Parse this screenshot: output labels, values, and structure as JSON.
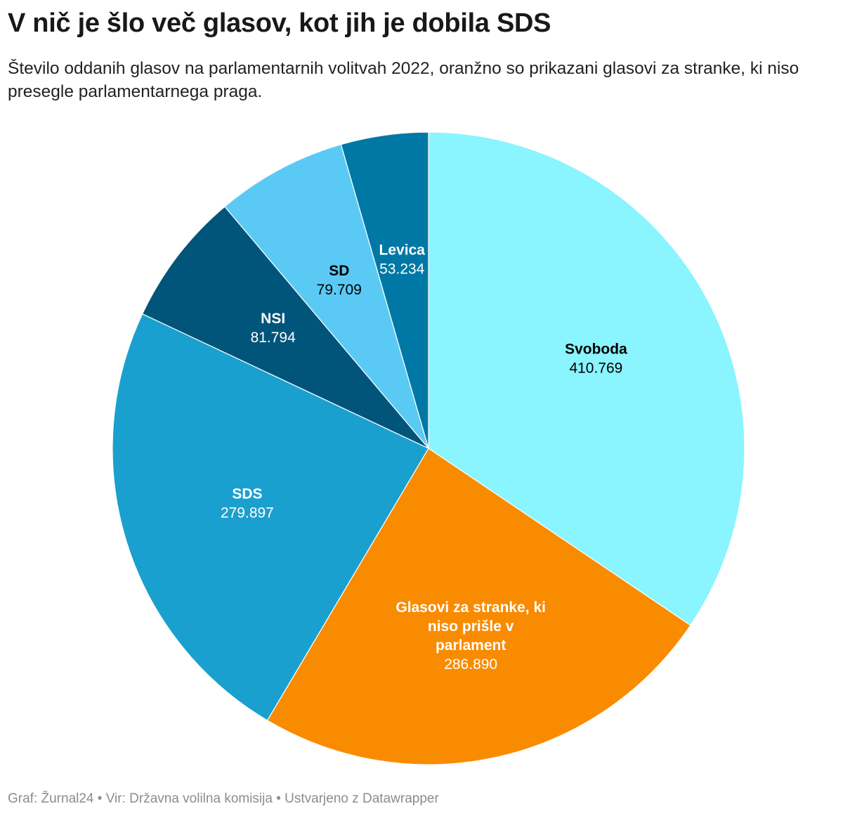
{
  "chart_data": {
    "type": "pie",
    "title": "V nič je šlo več glasov, kot jih je dobila SDS",
    "subtitle": "Število oddanih glasov na parlamentarnih volitvah 2022, oranžno so prikazani glasovi za stranke, ki niso presegle parlamentarnega praga.",
    "slices": [
      {
        "key": "svoboda",
        "label": "Svoboda",
        "value": 410769,
        "display": "410.769",
        "color": "#8af4ff",
        "text_color": "#000000"
      },
      {
        "key": "ostali",
        "label": "Glasovi za stranke, ki niso prišle v parlament",
        "label_lines": [
          "Glasovi za stranke, ki",
          "niso prišle v",
          "parlament"
        ],
        "value": 286890,
        "display": "286.890",
        "color": "#f98b00",
        "text_color": "#ffffff"
      },
      {
        "key": "sds",
        "label": "SDS",
        "value": 279897,
        "display": "279.897",
        "color": "#1aa0ce",
        "text_color": "#ffffff"
      },
      {
        "key": "nsi",
        "label": "NSI",
        "value": 81794,
        "display": "81.794",
        "color": "#02557a",
        "text_color": "#ffffff"
      },
      {
        "key": "sd",
        "label": "SD",
        "value": 79709,
        "display": "79.709",
        "color": "#5acaf5",
        "text_color": "#000000"
      },
      {
        "key": "levica",
        "label": "Levica",
        "value": 53234,
        "display": "53.234",
        "color": "#0078a5",
        "text_color": "#ffffff"
      }
    ]
  },
  "footer": "Graf: Žurnal24 • Vir: Državna volilna komisija • Ustvarjeno z Datawrapper"
}
